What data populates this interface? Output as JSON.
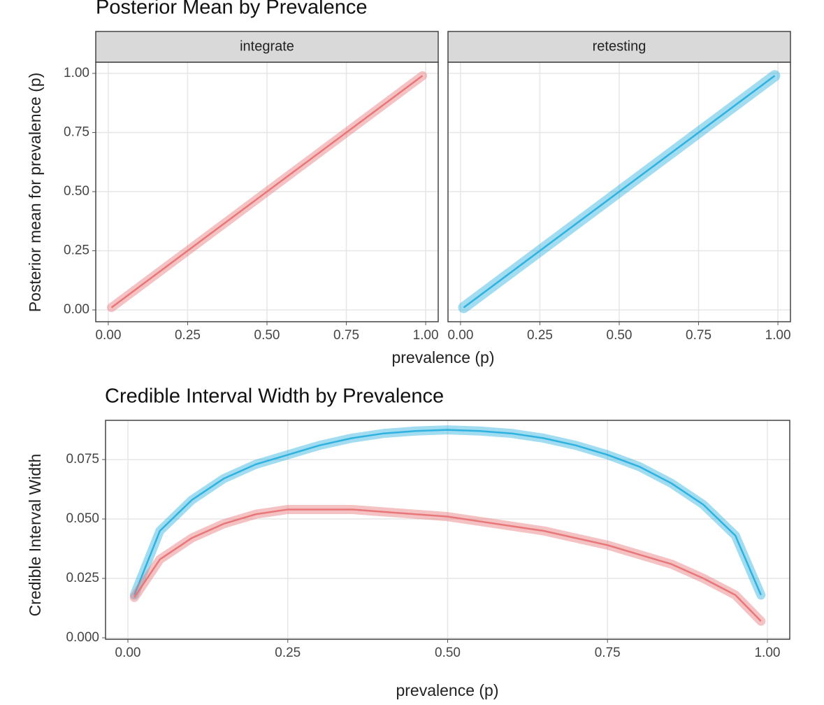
{
  "chart_data": [
    {
      "type": "line",
      "title": "Posterior Mean by Prevalence",
      "y_label": "Posterior mean for prevalence (p)",
      "x_label": "prevalence (p)",
      "facets": [
        {
          "label": "integrate",
          "color": "#e8777a",
          "x": [
            0.01,
            0.25,
            0.5,
            0.75,
            0.99
          ],
          "values": [
            0.01,
            0.25,
            0.5,
            0.75,
            0.99
          ]
        },
        {
          "label": "retesting",
          "color": "#2fb2e0",
          "x": [
            0.01,
            0.25,
            0.5,
            0.75,
            0.99
          ],
          "values": [
            0.01,
            0.25,
            0.5,
            0.75,
            0.99
          ]
        }
      ],
      "xlim": [
        -0.0395,
        1.0395
      ],
      "ylim": [
        -0.05,
        1.047
      ],
      "xticks": [
        {
          "value": 0,
          "label": "0.00"
        },
        {
          "value": 0.25,
          "label": "0.25"
        },
        {
          "value": 0.5,
          "label": "0.50"
        },
        {
          "value": 0.75,
          "label": "0.75"
        },
        {
          "value": 1,
          "label": "1.00"
        }
      ],
      "yticks": [
        {
          "value": 0,
          "label": "0.00"
        },
        {
          "value": 0.25,
          "label": "0.25"
        },
        {
          "value": 0.5,
          "label": "0.50"
        },
        {
          "value": 0.75,
          "label": "0.75"
        },
        {
          "value": 1,
          "label": "1.00"
        }
      ],
      "grid": true
    },
    {
      "type": "line",
      "title": "Credible Interval Width by Prevalence",
      "y_label": "Credible Interval Width",
      "x_label": "prevalence (p)",
      "x": [
        0.01,
        0.05,
        0.1,
        0.15,
        0.2,
        0.25,
        0.3,
        0.35,
        0.4,
        0.45,
        0.5,
        0.55,
        0.6,
        0.65,
        0.7,
        0.75,
        0.8,
        0.85,
        0.9,
        0.95,
        0.99
      ],
      "series": [
        {
          "color": "#2fb2e0",
          "values": [
            0.018,
            0.045,
            0.058,
            0.067,
            0.073,
            0.077,
            0.081,
            0.084,
            0.086,
            0.087,
            0.0875,
            0.087,
            0.086,
            0.084,
            0.081,
            0.077,
            0.072,
            0.065,
            0.056,
            0.043,
            0.018
          ]
        },
        {
          "color": "#e8777a",
          "values": [
            0.017,
            0.033,
            0.042,
            0.048,
            0.052,
            0.054,
            0.054,
            0.054,
            0.053,
            0.052,
            0.051,
            0.049,
            0.047,
            0.045,
            0.042,
            0.039,
            0.035,
            0.031,
            0.025,
            0.018,
            0.007
          ]
        }
      ],
      "xlim": [
        -0.035,
        1.035
      ],
      "ylim": [
        -0.0006,
        0.0915
      ],
      "xticks": [
        {
          "value": 0,
          "label": "0.00"
        },
        {
          "value": 0.25,
          "label": "0.25"
        },
        {
          "value": 0.5,
          "label": "0.50"
        },
        {
          "value": 0.75,
          "label": "0.75"
        },
        {
          "value": 1,
          "label": "1.00"
        }
      ],
      "yticks": [
        {
          "value": 0,
          "label": "0.000"
        },
        {
          "value": 0.025,
          "label": "0.025"
        },
        {
          "value": 0.05,
          "label": "0.050"
        },
        {
          "value": 0.075,
          "label": "0.075"
        }
      ],
      "grid": true
    }
  ]
}
